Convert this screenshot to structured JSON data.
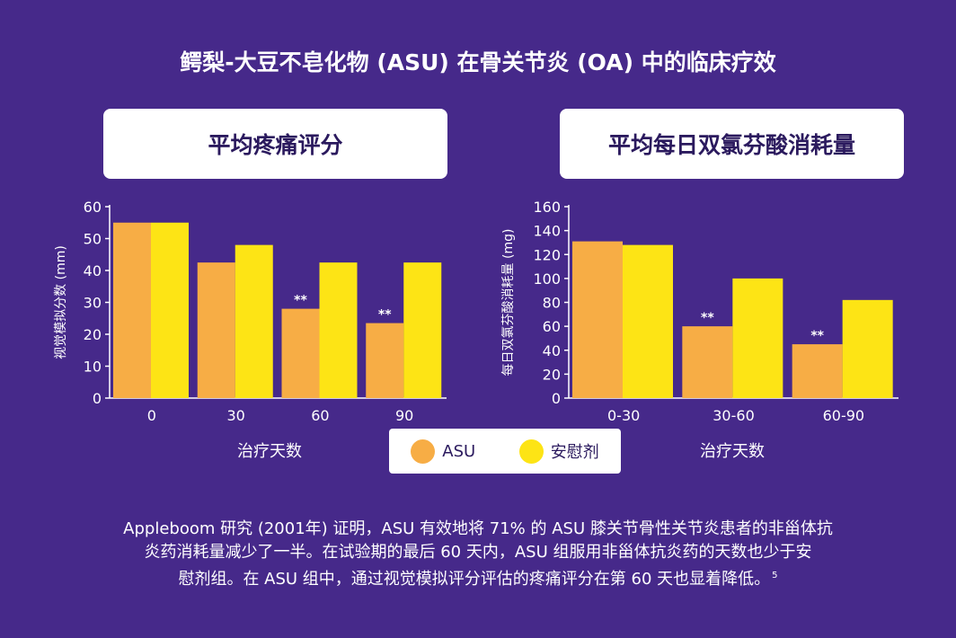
{
  "title": "鳄梨-大豆不皂化物 (ASU) 在骨关节炎 (OA) 中的临床疗效",
  "colors": {
    "background": "#46298a",
    "asu": "#f7ad45",
    "placebo": "#fde415",
    "text_dark": "#2b1a5e"
  },
  "legend": {
    "asu": "ASU",
    "placebo": "安慰剂"
  },
  "footnote": {
    "line1": "Appleboom 研究 (2001年) 证明，ASU 有效地将 71% 的 ASU 膝关节骨性关节炎患者的非甾体抗",
    "line2": "炎药消耗量减少了一半。在试验期的最后 60 天内，ASU 组服用非甾体抗炎药的天数也少于安",
    "line3": "慰剂组。在 ASU 组中，通过视觉模拟评分评估的疼痛评分在第 60 天也显着降低。",
    "ref": "5"
  },
  "chart_data": [
    {
      "type": "bar",
      "title": "平均疼痛评分",
      "xlabel": "治疗天数",
      "ylabel": "视觉模拟分数 (mm)",
      "categories": [
        "0",
        "30",
        "60",
        "90"
      ],
      "ylim": [
        0,
        60
      ],
      "yticks": [
        0,
        10,
        20,
        30,
        40,
        50,
        60
      ],
      "series": [
        {
          "name": "ASU",
          "values": [
            55,
            42.5,
            28,
            23.5
          ]
        },
        {
          "name": "安慰剂",
          "values": [
            55,
            48,
            42.5,
            42.5
          ]
        }
      ],
      "annotations": [
        "",
        "",
        "**",
        "**"
      ]
    },
    {
      "type": "bar",
      "title": "平均每日双氯芬酸消耗量",
      "xlabel": "治疗天数",
      "ylabel": "每日双氯芬酸消耗量 (mg)",
      "categories": [
        "0-30",
        "30-60",
        "60-90"
      ],
      "ylim": [
        0,
        160
      ],
      "yticks": [
        0,
        20,
        40,
        60,
        80,
        100,
        120,
        140,
        160
      ],
      "series": [
        {
          "name": "ASU",
          "values": [
            131,
            60,
            45
          ]
        },
        {
          "name": "安慰剂",
          "values": [
            128,
            100,
            82
          ]
        }
      ],
      "annotations": [
        "",
        "**",
        "**"
      ]
    }
  ]
}
